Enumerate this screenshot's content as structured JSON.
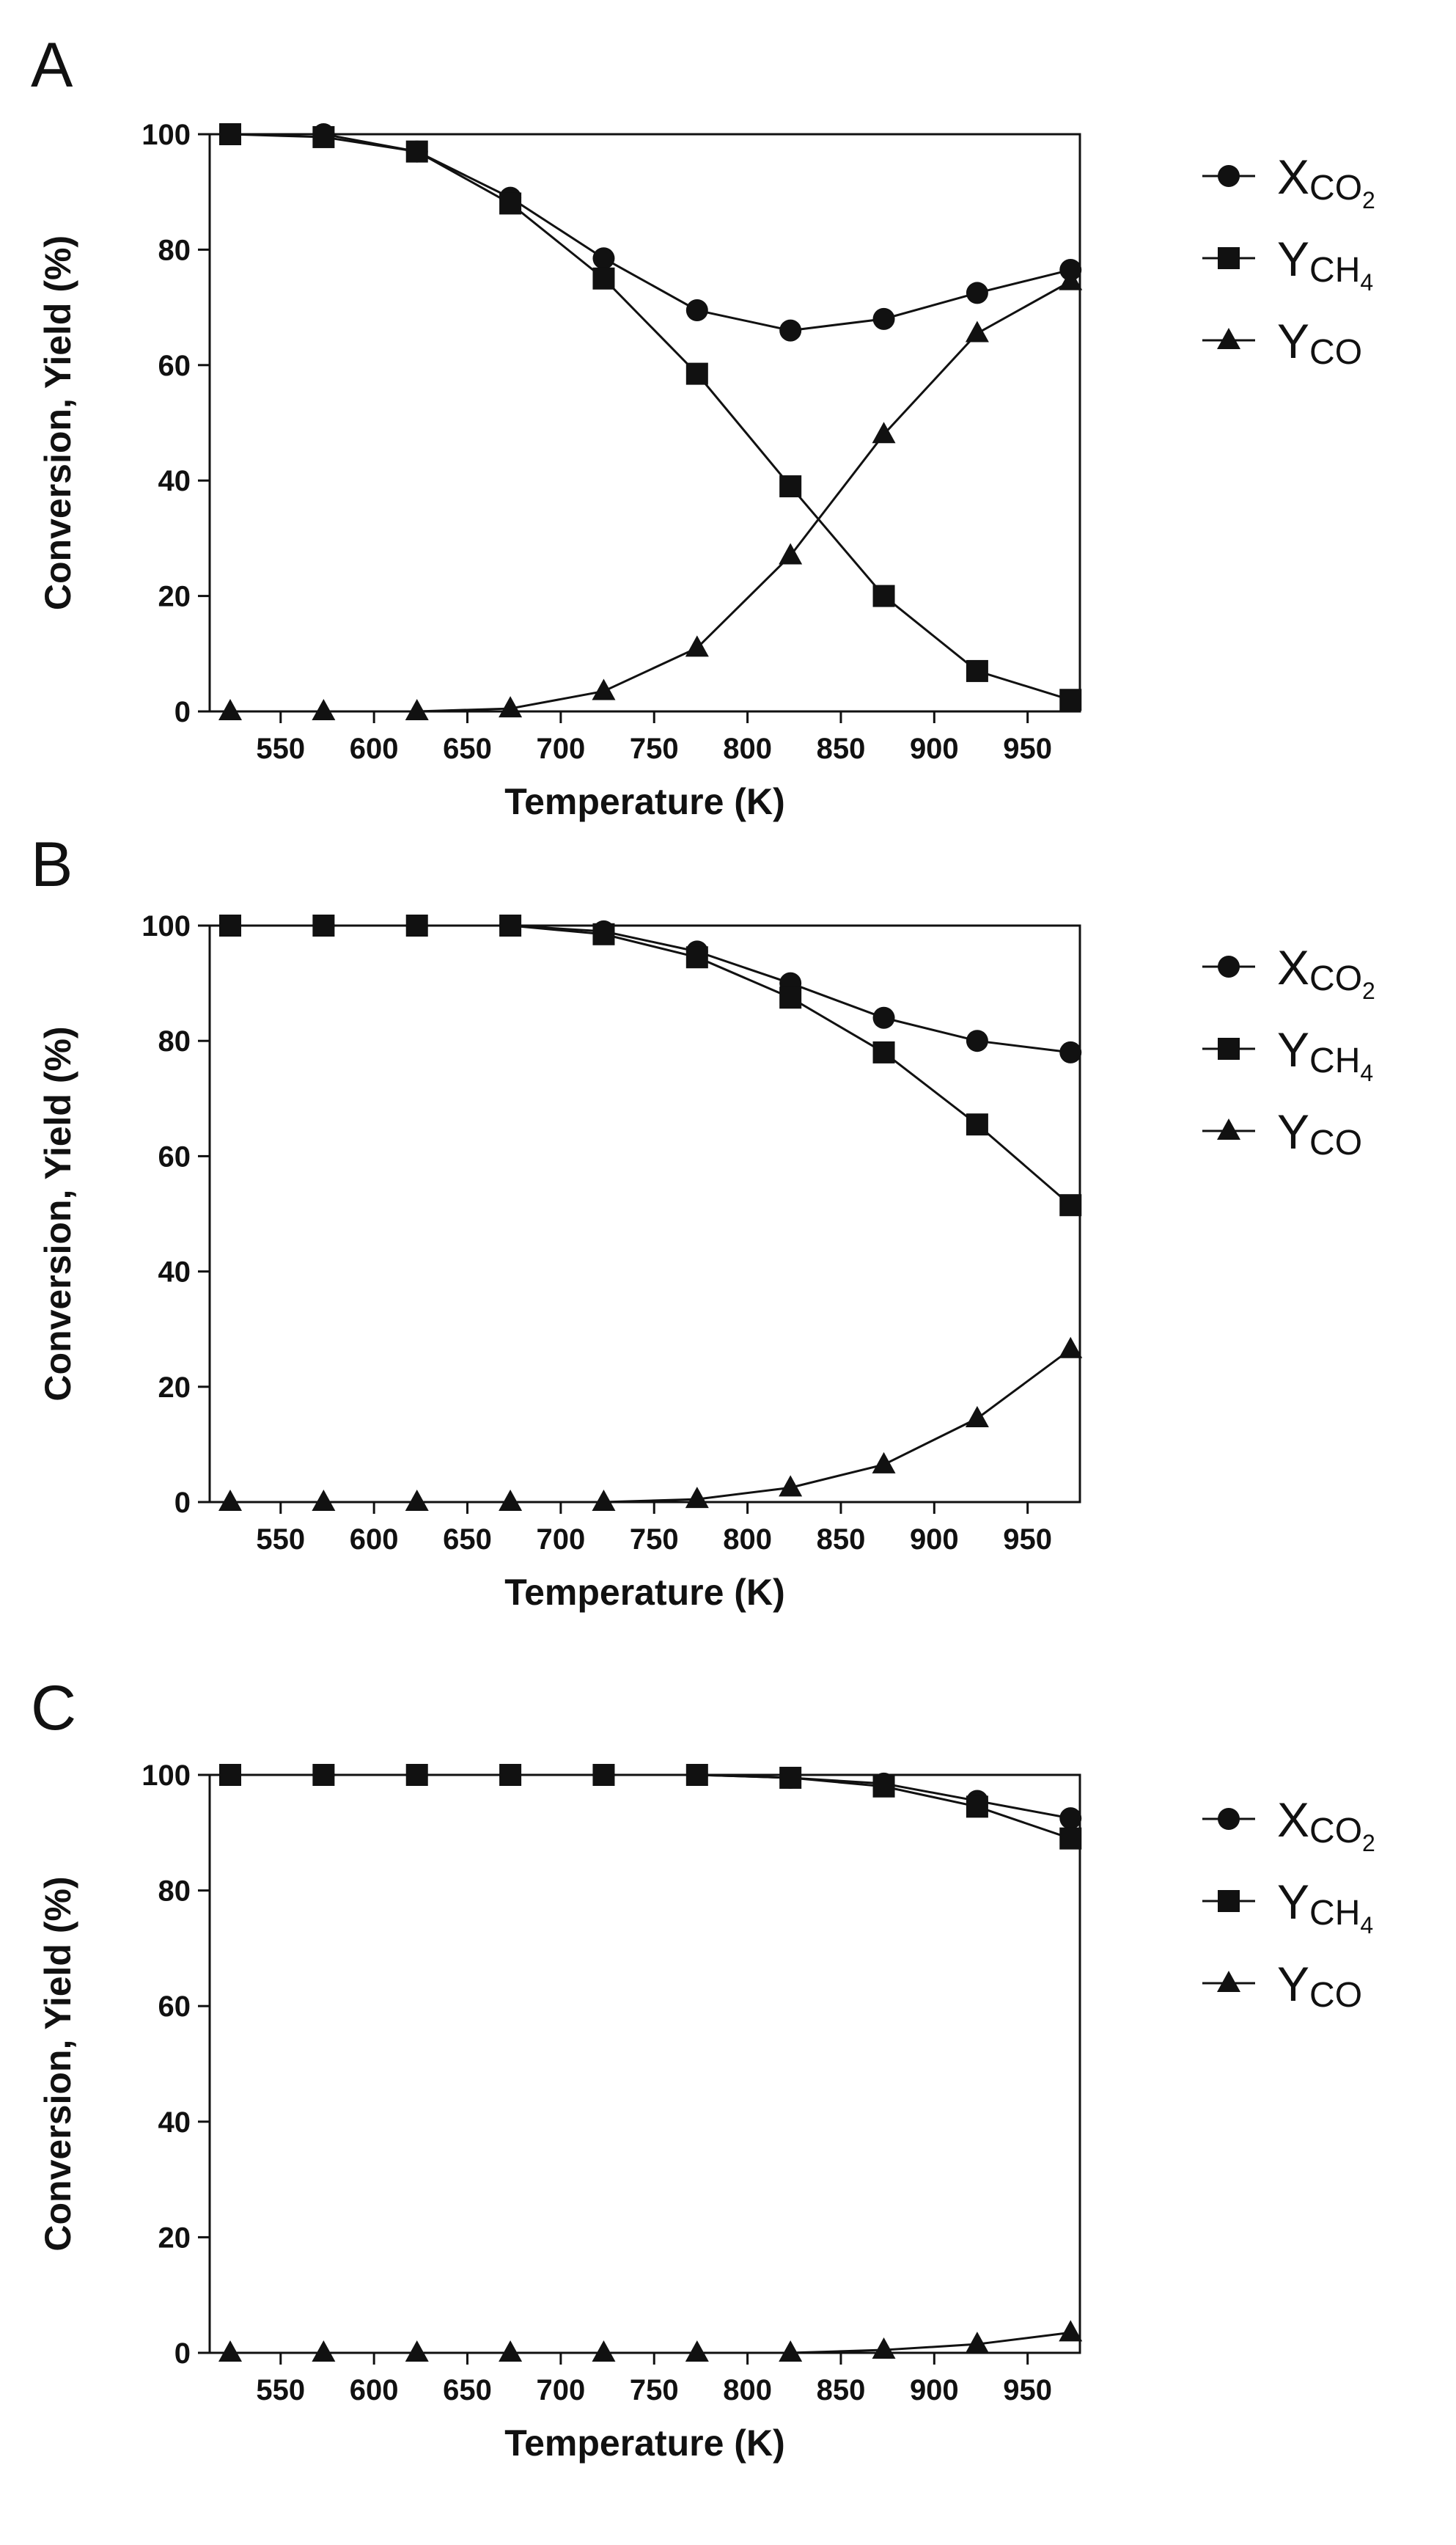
{
  "chart_data": [
    {
      "type": "line",
      "panel_label": "A",
      "x": [
        523,
        573,
        623,
        673,
        723,
        773,
        823,
        873,
        923,
        973
      ],
      "series": [
        {
          "name": "X_CO2",
          "values": [
            100,
            100,
            97,
            89,
            78.5,
            69.5,
            66,
            68,
            72.5,
            76.5
          ]
        },
        {
          "name": "Y_CH4",
          "values": [
            100,
            99.5,
            97,
            88,
            75,
            58.5,
            39,
            20,
            7,
            2
          ]
        },
        {
          "name": "Y_CO",
          "values": [
            0,
            0,
            0,
            0.5,
            3.5,
            11,
            27,
            48,
            65.5,
            74.5
          ]
        }
      ],
      "xticks": [
        550,
        600,
        650,
        700,
        750,
        800,
        850,
        900,
        950
      ],
      "yticks": [
        0,
        20,
        40,
        60,
        80,
        100
      ],
      "xlim": [
        512,
        978
      ],
      "ylim": [
        0,
        100
      ],
      "xlabel": "Temperature (K)",
      "ylabel": "Conversion, Yield (%)"
    },
    {
      "type": "line",
      "panel_label": "B",
      "x": [
        523,
        573,
        623,
        673,
        723,
        773,
        823,
        873,
        923,
        973
      ],
      "series": [
        {
          "name": "X_CO2",
          "values": [
            100,
            100,
            100,
            100,
            99,
            95.5,
            90,
            84,
            80,
            78
          ]
        },
        {
          "name": "Y_CH4",
          "values": [
            100,
            100,
            100,
            100,
            98.5,
            94.5,
            87.5,
            78,
            65.5,
            51.5
          ]
        },
        {
          "name": "Y_CO",
          "values": [
            0,
            0,
            0,
            0,
            0,
            0.5,
            2.5,
            6.5,
            14.5,
            26.5
          ]
        }
      ],
      "xticks": [
        550,
        600,
        650,
        700,
        750,
        800,
        850,
        900,
        950
      ],
      "yticks": [
        0,
        20,
        40,
        60,
        80,
        100
      ],
      "xlim": [
        512,
        978
      ],
      "ylim": [
        0,
        100
      ],
      "xlabel": "Temperature (K)",
      "ylabel": "Conversion, Yield (%)"
    },
    {
      "type": "line",
      "panel_label": "C",
      "x": [
        523,
        573,
        623,
        673,
        723,
        773,
        823,
        873,
        923,
        973
      ],
      "series": [
        {
          "name": "X_CO2",
          "values": [
            100,
            100,
            100,
            100,
            100,
            100,
            99.5,
            98.5,
            95.5,
            92.5
          ]
        },
        {
          "name": "Y_CH4",
          "values": [
            100,
            100,
            100,
            100,
            100,
            100,
            99.5,
            98,
            94.5,
            89
          ]
        },
        {
          "name": "Y_CO",
          "values": [
            0,
            0,
            0,
            0,
            0,
            0,
            0,
            0.5,
            1.5,
            3.5
          ]
        }
      ],
      "xticks": [
        550,
        600,
        650,
        700,
        750,
        800,
        850,
        900,
        950
      ],
      "yticks": [
        0,
        20,
        40,
        60,
        80,
        100
      ],
      "xlim": [
        512,
        978
      ],
      "ylim": [
        0,
        100
      ],
      "xlabel": "Temperature (K)",
      "ylabel": "Conversion, Yield (%)"
    }
  ],
  "legend": [
    {
      "key": "X_CO2",
      "main": "X",
      "sub": "CO",
      "subsub": "2",
      "marker": "circle"
    },
    {
      "key": "Y_CH4",
      "main": "Y",
      "sub": "CH",
      "subsub": "4",
      "marker": "square"
    },
    {
      "key": "Y_CO",
      "main": "Y",
      "sub": "CO",
      "subsub": "",
      "marker": "triangle"
    }
  ],
  "colors": {
    "line": "#111111",
    "axis": "#111111",
    "background": "#ffffff"
  }
}
